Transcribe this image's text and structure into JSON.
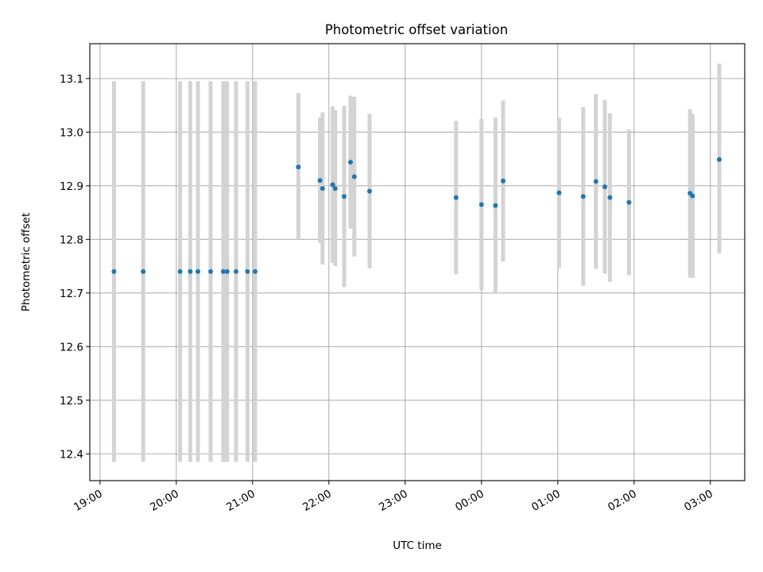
{
  "chart_data": {
    "type": "scatter",
    "title": "Photometric offset variation",
    "xlabel": "UTC time",
    "ylabel": "Photometric offset",
    "grid": true,
    "x_axis": {
      "kind": "time",
      "start_date": "2000-01-01",
      "range": [
        "2000-01-01 18:52",
        "2000-01-02 03:27"
      ],
      "ticks": [
        {
          "value": "2000-01-01 19:00",
          "label": "19:00"
        },
        {
          "value": "2000-01-01 20:00",
          "label": "20:00"
        },
        {
          "value": "2000-01-01 21:00",
          "label": "21:00"
        },
        {
          "value": "2000-01-01 22:00",
          "label": "22:00"
        },
        {
          "value": "2000-01-01 23:00",
          "label": "23:00"
        },
        {
          "value": "2000-01-02 00:00",
          "label": "00:00"
        },
        {
          "value": "2000-01-02 01:00",
          "label": "01:00"
        },
        {
          "value": "2000-01-02 02:00",
          "label": "02:00"
        },
        {
          "value": "2000-01-02 03:00",
          "label": "03:00"
        }
      ]
    },
    "y_axis": {
      "range": [
        12.35,
        13.165
      ],
      "ticks": [
        {
          "value": 12.4,
          "label": "12.4"
        },
        {
          "value": 12.5,
          "label": "12.5"
        },
        {
          "value": 12.6,
          "label": "12.6"
        },
        {
          "value": 12.7,
          "label": "12.7"
        },
        {
          "value": 12.8,
          "label": "12.8"
        },
        {
          "value": 12.9,
          "label": "12.9"
        },
        {
          "value": 13.0,
          "label": "13.0"
        },
        {
          "value": 13.1,
          "label": "13.1"
        }
      ]
    },
    "series": [
      {
        "point_color": "#1f77b4",
        "errorbar_color": "#d3d3d3",
        "points": [
          {
            "x": "2000-01-01 19:11",
            "y": 12.74,
            "ylo": 12.385,
            "yhi": 13.095
          },
          {
            "x": "2000-01-01 19:34",
            "y": 12.74,
            "ylo": 12.385,
            "yhi": 13.095
          },
          {
            "x": "2000-01-01 20:03",
            "y": 12.74,
            "ylo": 12.385,
            "yhi": 13.095
          },
          {
            "x": "2000-01-01 20:11",
            "y": 12.74,
            "ylo": 12.385,
            "yhi": 13.095
          },
          {
            "x": "2000-01-01 20:17",
            "y": 12.74,
            "ylo": 12.385,
            "yhi": 13.095
          },
          {
            "x": "2000-01-01 20:27",
            "y": 12.74,
            "ylo": 12.385,
            "yhi": 13.095
          },
          {
            "x": "2000-01-01 20:37",
            "y": 12.74,
            "ylo": 12.385,
            "yhi": 13.095
          },
          {
            "x": "2000-01-01 20:40",
            "y": 12.74,
            "ylo": 12.385,
            "yhi": 13.095
          },
          {
            "x": "2000-01-01 20:47",
            "y": 12.74,
            "ylo": 12.385,
            "yhi": 13.095
          },
          {
            "x": "2000-01-01 20:56",
            "y": 12.74,
            "ylo": 12.385,
            "yhi": 13.095
          },
          {
            "x": "2000-01-01 21:02",
            "y": 12.74,
            "ylo": 12.385,
            "yhi": 13.095
          },
          {
            "x": "2000-01-01 21:36",
            "y": 12.935,
            "ylo": 12.8,
            "yhi": 13.073
          },
          {
            "x": "2000-01-01 21:53",
            "y": 12.91,
            "ylo": 12.793,
            "yhi": 13.027
          },
          {
            "x": "2000-01-01 21:55",
            "y": 12.895,
            "ylo": 12.753,
            "yhi": 13.037
          },
          {
            "x": "2000-01-01 22:03",
            "y": 12.902,
            "ylo": 12.756,
            "yhi": 13.048
          },
          {
            "x": "2000-01-01 22:05",
            "y": 12.895,
            "ylo": 12.75,
            "yhi": 13.041
          },
          {
            "x": "2000-01-01 22:12",
            "y": 12.88,
            "ylo": 12.711,
            "yhi": 13.049
          },
          {
            "x": "2000-01-01 22:17",
            "y": 12.944,
            "ylo": 12.82,
            "yhi": 13.068
          },
          {
            "x": "2000-01-01 22:20",
            "y": 12.917,
            "ylo": 12.768,
            "yhi": 13.066
          },
          {
            "x": "2000-01-01 22:32",
            "y": 12.89,
            "ylo": 12.746,
            "yhi": 13.034
          },
          {
            "x": "2000-01-01 23:40",
            "y": 12.878,
            "ylo": 12.735,
            "yhi": 13.021
          },
          {
            "x": "2000-01-02 00:00",
            "y": 12.865,
            "ylo": 12.705,
            "yhi": 13.025
          },
          {
            "x": "2000-01-02 00:11",
            "y": 12.863,
            "ylo": 12.7,
            "yhi": 13.027
          },
          {
            "x": "2000-01-02 00:17",
            "y": 12.909,
            "ylo": 12.759,
            "yhi": 13.059
          },
          {
            "x": "2000-01-02 01:01",
            "y": 12.887,
            "ylo": 12.747,
            "yhi": 13.027
          },
          {
            "x": "2000-01-02 01:20",
            "y": 12.88,
            "ylo": 12.713,
            "yhi": 13.047
          },
          {
            "x": "2000-01-02 01:30",
            "y": 12.908,
            "ylo": 12.745,
            "yhi": 13.071
          },
          {
            "x": "2000-01-02 01:37",
            "y": 12.898,
            "ylo": 12.736,
            "yhi": 13.06
          },
          {
            "x": "2000-01-02 01:41",
            "y": 12.878,
            "ylo": 12.721,
            "yhi": 13.035
          },
          {
            "x": "2000-01-02 01:56",
            "y": 12.869,
            "ylo": 12.733,
            "yhi": 13.005
          },
          {
            "x": "2000-01-02 02:44",
            "y": 12.886,
            "ylo": 12.729,
            "yhi": 13.043
          },
          {
            "x": "2000-01-02 02:46",
            "y": 12.881,
            "ylo": 12.728,
            "yhi": 13.034
          },
          {
            "x": "2000-01-02 03:07",
            "y": 12.949,
            "ylo": 12.774,
            "yhi": 13.128
          }
        ]
      }
    ]
  }
}
